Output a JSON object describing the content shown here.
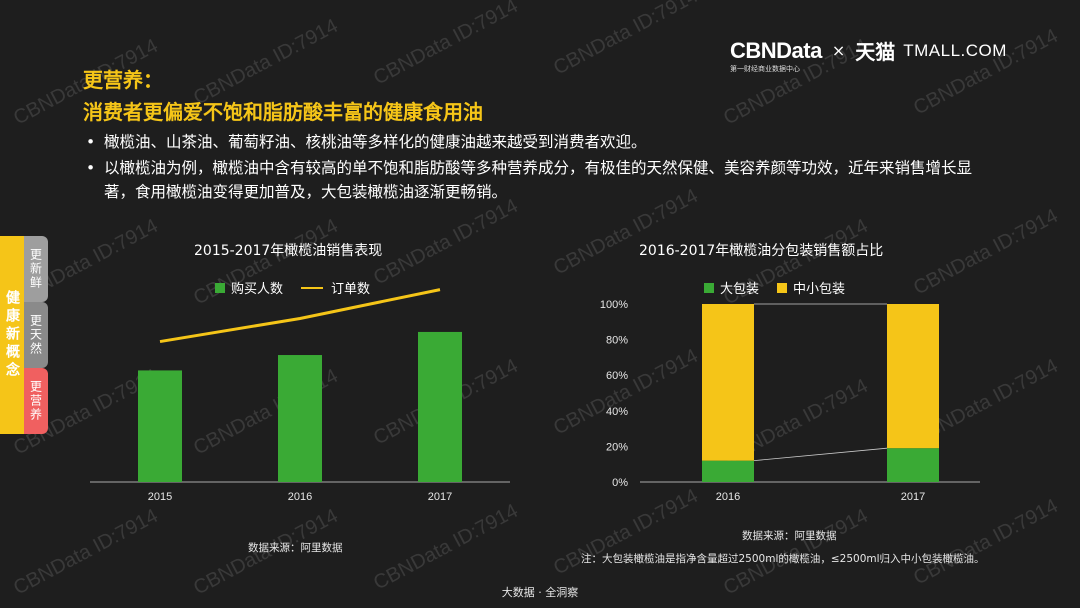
{
  "brand": {
    "cbn": "CBNData",
    "cbn_sub": "第一财经商业数据中心",
    "times": "×",
    "tmall_cn": "天猫",
    "tmall_en": "TMALL.COM"
  },
  "watermark": "CBNData ID:7914",
  "header": {
    "title1": "更营养：",
    "title2": "消费者更偏爱不饱和脂肪酸丰富的健康食用油"
  },
  "bullets": [
    "橄榄油、山茶油、葡萄籽油、核桃油等多样化的健康油越来越受到消费者欢迎。",
    "以橄榄油为例，橄榄油中含有较高的单不饱和脂肪酸等多种营养成分，有极佳的天然保健、美容养颜等功效，近年来销售增长显著，食用橄榄油变得更加普及，大包装橄榄油逐渐更畅销。"
  ],
  "sidebar": {
    "main": "健康新概念",
    "tabs": [
      "更新鲜",
      "更天然",
      "更营养"
    ]
  },
  "colors": {
    "green": "#3aaa35",
    "yellow": "#f5c518",
    "background": "#1e1e1e"
  },
  "chart_data": [
    {
      "type": "bar",
      "title": "2015-2017年橄榄油销售表现",
      "categories": [
        "2015",
        "2016",
        "2017"
      ],
      "series": [
        {
          "name": "购买人数",
          "kind": "bar",
          "color": "#3aaa35",
          "values": [
            0.58,
            0.66,
            0.78
          ]
        },
        {
          "name": "订单数",
          "kind": "line",
          "color": "#f5c518",
          "values": [
            0.73,
            0.85,
            1.0
          ]
        }
      ],
      "ylim": [
        0,
        1.05
      ],
      "yaxis_labels": false,
      "legend": "top",
      "source": "数据来源：阿里数据"
    },
    {
      "type": "bar",
      "stacked": true,
      "title": "2016-2017年橄榄油分包装销售额占比",
      "categories": [
        "2016",
        "2017"
      ],
      "series": [
        {
          "name": "大包装",
          "color": "#3aaa35",
          "values": [
            12,
            19
          ]
        },
        {
          "name": "中小包装",
          "color": "#f5c518",
          "values": [
            88,
            81
          ]
        }
      ],
      "ylim": [
        0,
        100
      ],
      "yticks": [
        "0%",
        "20%",
        "40%",
        "60%",
        "80%",
        "100%"
      ],
      "legend": "top",
      "source": "数据来源：阿里数据",
      "note": "注：大包装橄榄油是指净含量超过2500ml的橄榄油，≤2500ml归入中小包装橄榄油。"
    }
  ],
  "footer": "大数据 · 全洞察"
}
